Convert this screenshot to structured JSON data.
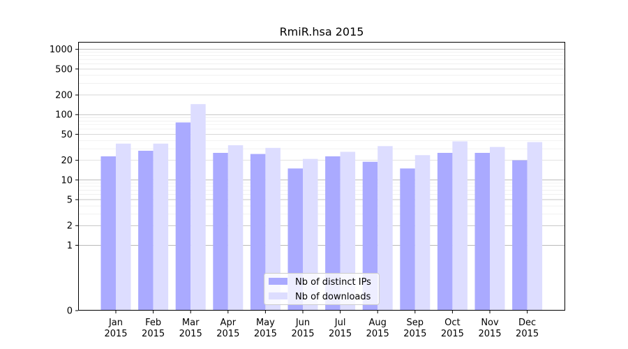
{
  "chart_data": {
    "type": "bar",
    "title": "RmiR.hsa 2015",
    "xlabel": "",
    "ylabel": "",
    "y_scale": "symlog",
    "ylim": [
      0,
      1300
    ],
    "y_ticks": [
      0,
      1,
      2,
      5,
      10,
      20,
      50,
      100,
      200,
      500,
      1000
    ],
    "y_tick_labels": [
      "0",
      "1",
      "2",
      "5",
      "10",
      "20",
      "50",
      "100",
      "200",
      "500",
      "1000"
    ],
    "categories": [
      [
        "Jan",
        "2015"
      ],
      [
        "Feb",
        "2015"
      ],
      [
        "Mar",
        "2015"
      ],
      [
        "Apr",
        "2015"
      ],
      [
        "May",
        "2015"
      ],
      [
        "Jun",
        "2015"
      ],
      [
        "Jul",
        "2015"
      ],
      [
        "Aug",
        "2015"
      ],
      [
        "Sep",
        "2015"
      ],
      [
        "Oct",
        "2015"
      ],
      [
        "Nov",
        "2015"
      ],
      [
        "Dec",
        "2015"
      ]
    ],
    "series": [
      {
        "name": "Nb of distinct IPs",
        "color": "#aaaaff",
        "values": [
          23,
          28,
          76,
          26,
          25,
          15,
          23,
          19,
          15,
          26,
          26,
          20
        ]
      },
      {
        "name": "Nb of downloads",
        "color": "#ddddff",
        "values": [
          36,
          36,
          145,
          34,
          31,
          21,
          27,
          33,
          24,
          39,
          32,
          38
        ]
      }
    ],
    "grid": true,
    "legend_position": "bottom-center"
  }
}
